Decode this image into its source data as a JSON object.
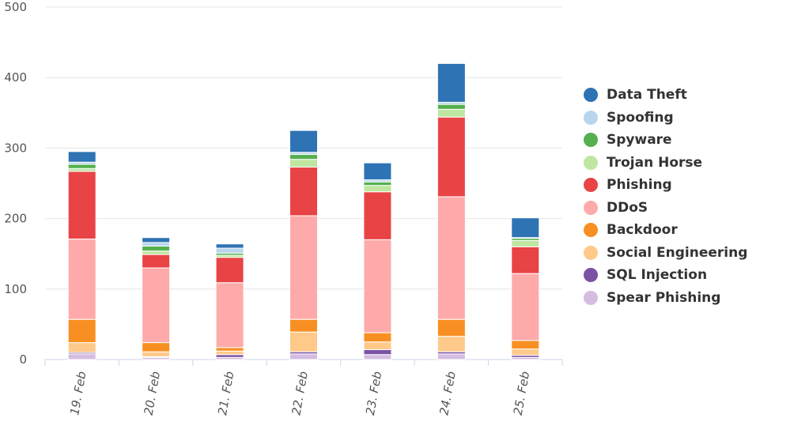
{
  "chart_data": {
    "type": "bar",
    "stacked": true,
    "categories": [
      "19. Feb",
      "20. Feb",
      "21. Feb",
      "22. Feb",
      "23. Feb",
      "24. Feb",
      "25. Feb"
    ],
    "ylim": [
      0,
      500
    ],
    "yticks": [
      "0",
      "100",
      "200",
      "300",
      "400",
      "500"
    ],
    "grid": true,
    "legend_position": "right",
    "series": [
      {
        "name": "Spear Phishing",
        "color": "#d4bde0",
        "values": [
          8,
          3,
          3,
          8,
          7,
          8,
          3
        ]
      },
      {
        "name": "SQL Injection",
        "color": "#7b52a3",
        "values": [
          2,
          1,
          4,
          3,
          7,
          3,
          3
        ]
      },
      {
        "name": "Social Engineering",
        "color": "#ffc98a",
        "values": [
          14,
          7,
          5,
          28,
          11,
          22,
          9
        ]
      },
      {
        "name": "Backdoor",
        "color": "#f88f22",
        "values": [
          33,
          13,
          5,
          18,
          13,
          24,
          12
        ]
      },
      {
        "name": "DDoS",
        "color": "#ffaaaa",
        "values": [
          114,
          106,
          92,
          147,
          132,
          174,
          95
        ]
      },
      {
        "name": "Phishing",
        "color": "#e84345",
        "values": [
          96,
          19,
          36,
          69,
          68,
          113,
          38
        ]
      },
      {
        "name": "Trojan Horse",
        "color": "#bfe6a0",
        "values": [
          4,
          5,
          3,
          11,
          9,
          11,
          9
        ]
      },
      {
        "name": "Spyware",
        "color": "#55b04f",
        "values": [
          6,
          7,
          3,
          7,
          5,
          7,
          3
        ]
      },
      {
        "name": "Spoofing",
        "color": "#b9d5ec",
        "values": [
          3,
          5,
          7,
          3,
          3,
          3,
          1
        ]
      },
      {
        "name": "Data Theft",
        "color": "#2e73b3",
        "values": [
          15,
          7,
          6,
          31,
          24,
          55,
          28
        ]
      }
    ]
  }
}
